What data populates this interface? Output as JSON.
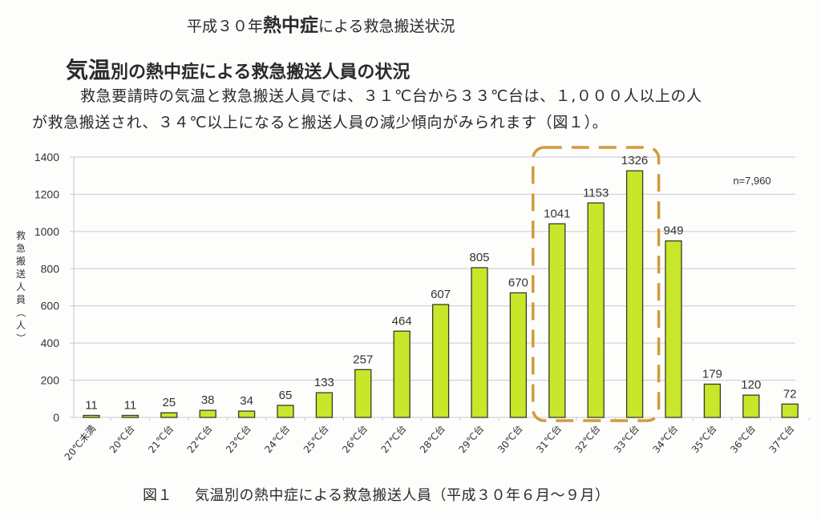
{
  "header": {
    "title_prefix": "平成３０年",
    "title_emphasis": "熱中症",
    "title_suffix": "による救急搬送状況"
  },
  "section": {
    "heading_emphasis": "気温",
    "heading_rest": "別の熱中症による救急搬送人員の状況",
    "paragraph_line1": "救急要請時の気温と救急搬送人員では、３１℃台から３３℃台は、１,０００人以上の人",
    "paragraph_line2": "が救急搬送され、３４℃以上になると搬送人員の減少傾向がみられます（図１）。"
  },
  "caption": {
    "figure_number": "図１",
    "text": "気温別の熱中症による救急搬送人員（平成３０年６月～９月）"
  },
  "colors": {
    "bar_fill": "#c8e62a",
    "bar_stroke": "#3a3a2a",
    "highlight_box": "#d49a3a",
    "grid": "#c8c8d0"
  },
  "chart_data": {
    "type": "bar",
    "title": "図１　気温別の熱中症による救急搬送人員（平成３０年６月～９月）",
    "xlabel": "",
    "ylabel": "救急搬送人員（人）",
    "ylim": [
      0,
      1400
    ],
    "yticks": [
      0,
      200,
      400,
      600,
      800,
      1000,
      1200,
      1400
    ],
    "grid": true,
    "categories": [
      "20℃未満",
      "20℃台",
      "21℃台",
      "22℃台",
      "23℃台",
      "24℃台",
      "25℃台",
      "26℃台",
      "27℃台",
      "28℃台",
      "29℃台",
      "30℃台",
      "31℃台",
      "32℃台",
      "33℃台",
      "34℃台",
      "35℃台",
      "36℃台",
      "37℃台"
    ],
    "values": [
      11,
      11,
      25,
      38,
      34,
      65,
      133,
      257,
      464,
      607,
      805,
      670,
      1041,
      1153,
      1326,
      949,
      179,
      120,
      72
    ],
    "annotations": [
      {
        "text": "n=7,960",
        "position": "top-right"
      },
      {
        "type": "dashed-box",
        "highlights": [
          "31℃台",
          "32℃台",
          "33℃台"
        ]
      }
    ]
  }
}
